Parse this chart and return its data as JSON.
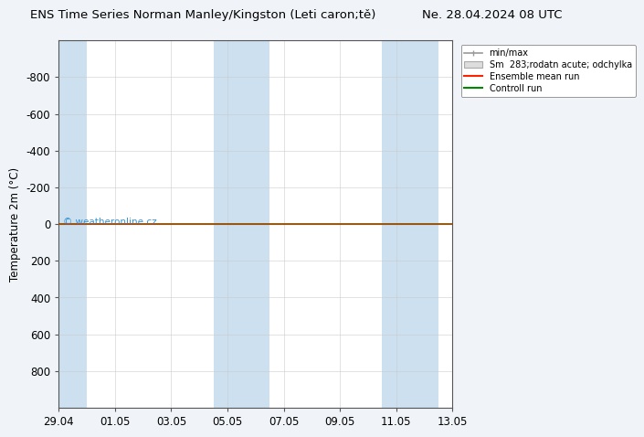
{
  "title_left": "ENS Time Series Norman Manley/Kingston (Leti caron;tě)",
  "title_right": "Ne. 28.04.2024 08 UTC",
  "ylabel": "Temperature 2m (°C)",
  "watermark": "© weatheronline.cz",
  "ylim": [
    -1000,
    1000
  ],
  "yticks": [
    -800,
    -600,
    -400,
    -200,
    0,
    200,
    400,
    600,
    800
  ],
  "xlim": [
    0,
    14
  ],
  "x_tick_positions": [
    0,
    2,
    4,
    6,
    8,
    10,
    12,
    14
  ],
  "x_tick_labels": [
    "29.04",
    "01.05",
    "03.05",
    "05.05",
    "07.05",
    "09.05",
    "11.05",
    "13.05"
  ],
  "shaded_bands": [
    [
      0,
      1.0
    ],
    [
      5.5,
      6.5
    ],
    [
      6.5,
      7.5
    ],
    [
      11.5,
      12.5
    ],
    [
      12.5,
      13.5
    ]
  ],
  "control_run_y": 0,
  "ensemble_mean_y": 0,
  "fig_bg": "#f0f4f8",
  "plot_bg": "#ffffff",
  "band_color": "#cce0f0",
  "control_run_color": "#008800",
  "ensemble_mean_color": "#ff2200",
  "legend_labels": [
    "min/max",
    "Sm  283;rodatn acute; odchylka",
    "Ensemble mean run",
    "Controll run"
  ],
  "legend_line_colors": [
    "#999999",
    "#cccccc",
    "#ff2200",
    "#008800"
  ],
  "font_size": 8.5,
  "title_font_size": 9.5
}
